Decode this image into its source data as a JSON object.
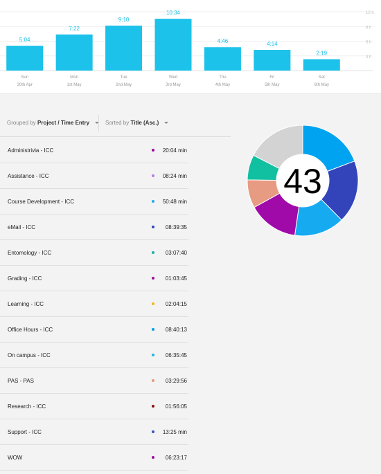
{
  "chart_data": {
    "type": "bar",
    "categories": [
      "Sun",
      "Mon",
      "Tue",
      "Wed",
      "Thu",
      "Fri",
      "Sat"
    ],
    "dates": [
      "30th Apr",
      "1st May",
      "2nd May",
      "3rd May",
      "4th May",
      "5th May",
      "6th May"
    ],
    "values": [
      5.07,
      7.37,
      9.17,
      10.57,
      4.77,
      4.23,
      2.32
    ],
    "data_labels": [
      "5:04",
      "7:22",
      "9:10",
      "10:34",
      "4:46",
      "4:14",
      "2:19"
    ],
    "yticks": [
      "12 h",
      "9 h",
      "6 h",
      "3 h"
    ],
    "ytick_values": [
      12,
      9,
      6,
      3
    ],
    "ylim": [
      0,
      12
    ],
    "bar_color": "#1cc2ea",
    "grid": true
  },
  "filters": {
    "grouped_prefix": "Grouped by",
    "grouped_value": "Project / Time Entry",
    "sorted_prefix": "Sorted by",
    "sorted_value": "Title (Asc.)"
  },
  "entries": [
    {
      "title": "Administrivia - ICC",
      "time": "20:04 min",
      "color": "#a000a0"
    },
    {
      "title": "Assistance - ICC",
      "time": "08:24 min",
      "color": "#b57be8"
    },
    {
      "title": "Course Development - ICC",
      "time": "50:48 min",
      "color": "#2aa7ea"
    },
    {
      "title": "eMail - ICC",
      "time": "08:39:35",
      "color": "#3346b8"
    },
    {
      "title": "Entomology - ICC",
      "time": "03:07:40",
      "color": "#16b3a3"
    },
    {
      "title": "Grading - ICC",
      "time": "01:03:45",
      "color": "#9e0c9e"
    },
    {
      "title": "Learning - ICC",
      "time": "02:04:15",
      "color": "#f2b71c"
    },
    {
      "title": "Office Hours - ICC",
      "time": "08:40:13",
      "color": "#00a0ee"
    },
    {
      "title": "On campus - ICC",
      "time": "06:35:45",
      "color": "#1fb5e8"
    },
    {
      "title": "PAS - PAS",
      "time": "03:29:56",
      "color": "#e59a7c"
    },
    {
      "title": "Research - ICC",
      "time": "01:56:05",
      "color": "#8b0e0e"
    },
    {
      "title": "Support - ICC",
      "time": "13:25 min",
      "color": "#3355bb"
    },
    {
      "title": "WOW",
      "time": "06:23:17",
      "color": "#9e0c9e"
    }
  ],
  "donut": {
    "center_value": "43",
    "segments": [
      {
        "value": 21,
        "color": "#00a3f0"
      },
      {
        "value": 20,
        "color": "#3344bb"
      },
      {
        "value": 16,
        "color": "#16aaf0"
      },
      {
        "value": 16,
        "color": "#a00aa8"
      },
      {
        "value": 9,
        "color": "#e69b82"
      },
      {
        "value": 8,
        "color": "#10c0a0"
      },
      {
        "value": 19,
        "color": "#d3d3d3"
      }
    ]
  }
}
